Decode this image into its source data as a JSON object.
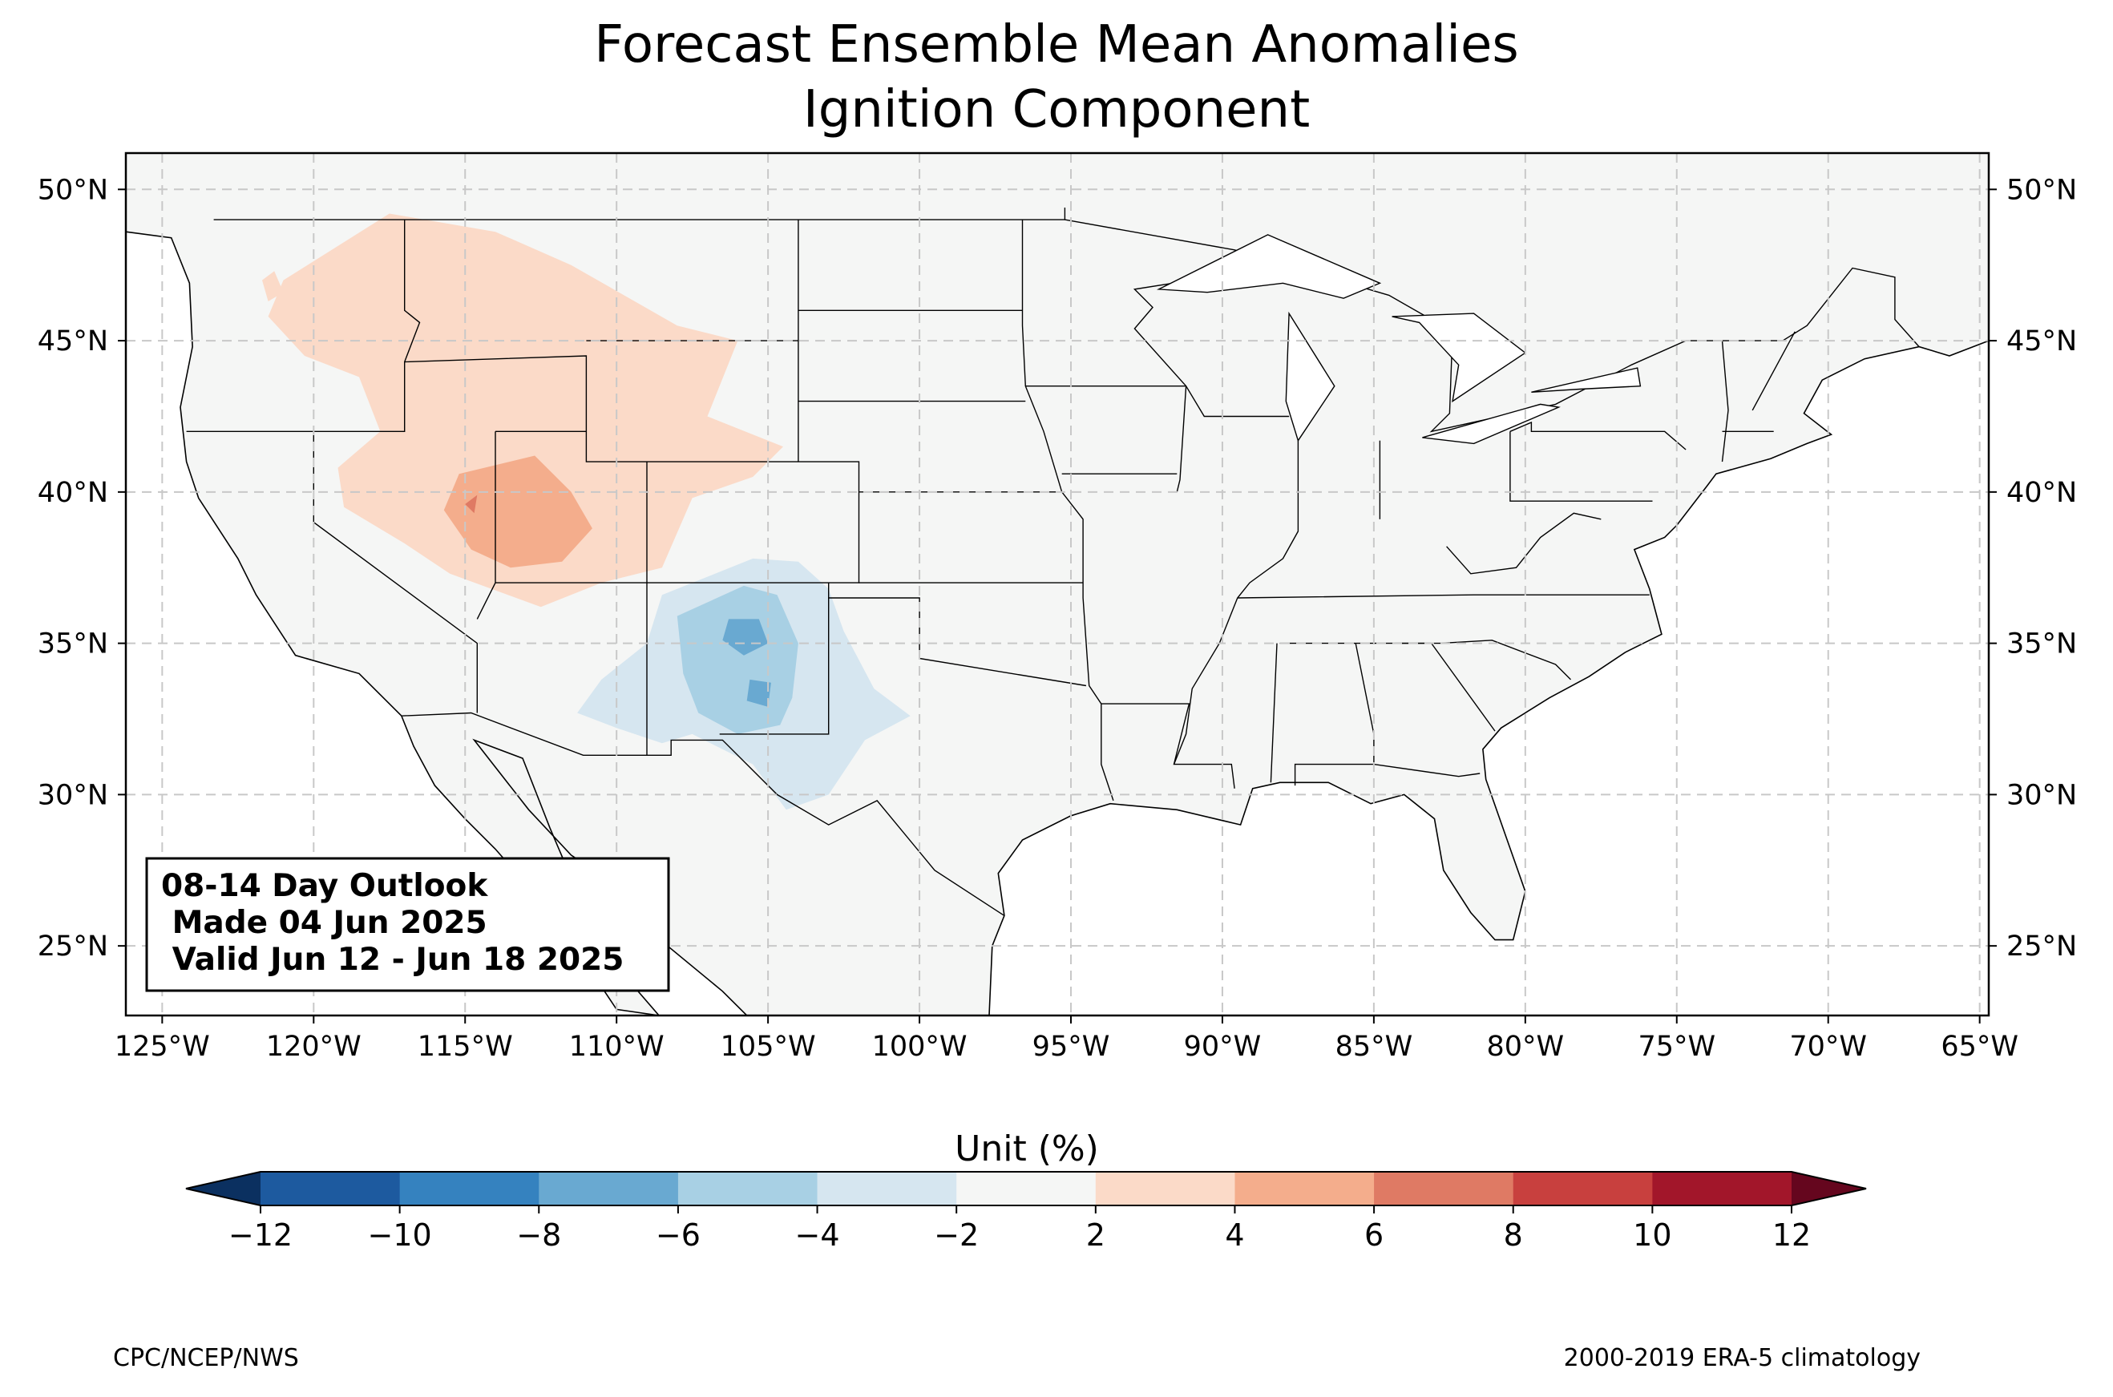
{
  "title_line1": "Forecast Ensemble Mean Anomalies",
  "title_line2": "Ignition Component",
  "info_box": {
    "line1": "08-14 Day Outlook",
    "line2": " Made 04 Jun 2025",
    "line3": " Valid Jun 12 - Jun 18 2025"
  },
  "map": {
    "lon_range": [
      -126.2,
      -64.7
    ],
    "lat_range": [
      22.7,
      51.2
    ],
    "lon_ticks": [
      {
        "value": -125,
        "label": "125°W"
      },
      {
        "value": -120,
        "label": "120°W"
      },
      {
        "value": -115,
        "label": "115°W"
      },
      {
        "value": -110,
        "label": "110°W"
      },
      {
        "value": -105,
        "label": "105°W"
      },
      {
        "value": -100,
        "label": "100°W"
      },
      {
        "value": -95,
        "label": "95°W"
      },
      {
        "value": -90,
        "label": "90°W"
      },
      {
        "value": -85,
        "label": "85°W"
      },
      {
        "value": -80,
        "label": "80°W"
      },
      {
        "value": -75,
        "label": "75°W"
      },
      {
        "value": -70,
        "label": "70°W"
      },
      {
        "value": -65,
        "label": "65°W"
      }
    ],
    "lat_ticks": [
      {
        "value": 50,
        "label": "50°N"
      },
      {
        "value": 45,
        "label": "45°N"
      },
      {
        "value": 40,
        "label": "40°N"
      },
      {
        "value": 35,
        "label": "35°N"
      },
      {
        "value": 30,
        "label": "30°N"
      },
      {
        "value": 25,
        "label": "25°N"
      }
    ],
    "gridlines": "dashed",
    "land_color": "#f5f6f5",
    "anomaly_regions": [
      {
        "name": "northwest-interior",
        "category": "2 to 4",
        "polygon": [
          [
            -121.0,
            47.0
          ],
          [
            -117.5,
            49.2
          ],
          [
            -114.0,
            48.6
          ],
          [
            -111.5,
            47.5
          ],
          [
            -108.0,
            45.5
          ],
          [
            -106.0,
            45.0
          ],
          [
            -107.0,
            42.5
          ],
          [
            -104.5,
            41.5
          ],
          [
            -105.5,
            40.5
          ],
          [
            -107.5,
            39.8
          ],
          [
            -108.5,
            37.5
          ],
          [
            -110.5,
            37.0
          ],
          [
            -112.5,
            36.2
          ],
          [
            -115.5,
            37.3
          ],
          [
            -117.0,
            38.3
          ],
          [
            -119.0,
            39.5
          ],
          [
            -119.2,
            40.8
          ],
          [
            -117.8,
            42.0
          ],
          [
            -118.5,
            43.8
          ],
          [
            -120.3,
            44.5
          ],
          [
            -121.5,
            45.8
          ]
        ]
      },
      {
        "name": "west-cascades",
        "category": "2 to 4",
        "polygon": [
          [
            -121.7,
            47.0
          ],
          [
            -121.3,
            47.3
          ],
          [
            -121.0,
            46.6
          ],
          [
            -121.5,
            46.3
          ]
        ]
      },
      {
        "name": "great-basin-core",
        "category": "4 to 6",
        "polygon": [
          [
            -115.2,
            40.6
          ],
          [
            -112.7,
            41.2
          ],
          [
            -111.5,
            40.0
          ],
          [
            -110.8,
            38.8
          ],
          [
            -111.8,
            37.7
          ],
          [
            -113.5,
            37.5
          ],
          [
            -114.8,
            38.1
          ],
          [
            -115.7,
            39.4
          ]
        ]
      },
      {
        "name": "great-basin-peak",
        "category": "6 to 8",
        "polygon": [
          [
            -115.0,
            39.6
          ],
          [
            -114.6,
            39.9
          ],
          [
            -114.7,
            39.3
          ]
        ]
      },
      {
        "name": "southwest-outer",
        "category": "-4 to -2",
        "polygon": [
          [
            -108.5,
            36.6
          ],
          [
            -105.5,
            37.8
          ],
          [
            -104.0,
            37.7
          ],
          [
            -103.0,
            36.8
          ],
          [
            -102.5,
            35.4
          ],
          [
            -101.5,
            33.5
          ],
          [
            -100.3,
            32.6
          ],
          [
            -101.8,
            31.8
          ],
          [
            -103.0,
            30.0
          ],
          [
            -104.4,
            29.5
          ],
          [
            -105.5,
            31.0
          ],
          [
            -107.5,
            32.0
          ],
          [
            -108.5,
            31.7
          ],
          [
            -110.0,
            32.2
          ],
          [
            -111.3,
            32.7
          ],
          [
            -110.5,
            33.8
          ],
          [
            -109.0,
            35.0
          ]
        ]
      },
      {
        "name": "southwest-inner",
        "category": "-6 to -4",
        "polygon": [
          [
            -108.0,
            35.9
          ],
          [
            -105.8,
            36.9
          ],
          [
            -104.7,
            36.6
          ],
          [
            -104.0,
            35.0
          ],
          [
            -104.2,
            33.2
          ],
          [
            -104.6,
            32.3
          ],
          [
            -106.0,
            32.0
          ],
          [
            -107.3,
            32.7
          ],
          [
            -107.8,
            34.0
          ]
        ]
      },
      {
        "name": "southwest-core-north",
        "category": "-8 to -6",
        "polygon": [
          [
            -106.3,
            35.8
          ],
          [
            -105.3,
            35.8
          ],
          [
            -105.0,
            35.0
          ],
          [
            -105.8,
            34.6
          ],
          [
            -106.5,
            35.1
          ]
        ]
      },
      {
        "name": "southwest-core-south",
        "category": "-8 to -6",
        "polygon": [
          [
            -105.6,
            33.8
          ],
          [
            -104.9,
            33.7
          ],
          [
            -105.0,
            32.9
          ],
          [
            -105.7,
            33.1
          ]
        ]
      }
    ]
  },
  "colorbar": {
    "label": "Unit (%)",
    "ticks": [
      "−12",
      "−10",
      "−8",
      "−6",
      "−4",
      "−2",
      "2",
      "4",
      "6",
      "8",
      "10",
      "12"
    ],
    "bins": [
      {
        "range": "-12 to -10",
        "color": "#1d5a9f"
      },
      {
        "range": "-10 to -8",
        "color": "#3582bf"
      },
      {
        "range": "-8 to -6",
        "color": "#69a9d1"
      },
      {
        "range": "-6 to -4",
        "color": "#a8d0e4"
      },
      {
        "range": "-4 to -2",
        "color": "#d6e6f0"
      },
      {
        "range": "-2 to 2",
        "color": "#f5f6f5"
      },
      {
        "range": "2 to 4",
        "color": "#fbdac8"
      },
      {
        "range": "4 to 6",
        "color": "#f4ad8c"
      },
      {
        "range": "6 to 8",
        "color": "#df7a64"
      },
      {
        "range": "8 to 10",
        "color": "#c8403e"
      },
      {
        "range": "10 to 12",
        "color": "#a2162a"
      }
    ],
    "under_color": "#0b3060",
    "over_color": "#65061e"
  },
  "credits": {
    "left": "CPC/NCEP/NWS",
    "right": "2000-2019 ERA-5 climatology"
  }
}
